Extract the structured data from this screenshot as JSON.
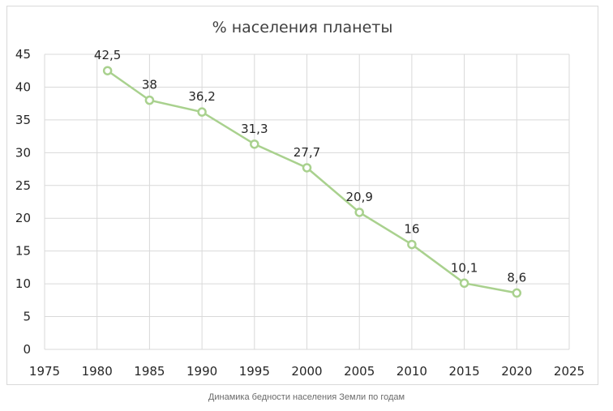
{
  "chart_data": {
    "type": "line",
    "title": "% населения планеты",
    "x": [
      1981,
      1985,
      1990,
      1995,
      2000,
      2005,
      2010,
      2015,
      2020
    ],
    "series": [
      {
        "values": [
          42.5,
          38,
          36.2,
          31.3,
          27.7,
          20.9,
          16,
          10.1,
          8.6
        ],
        "data_labels": [
          "42,5",
          "38",
          "36,2",
          "31,3",
          "27,7",
          "20,9",
          "16",
          "10,1",
          "8,6"
        ],
        "color": "#a9d18e"
      }
    ],
    "xlim": [
      1975,
      2025
    ],
    "ylim": [
      0,
      45
    ],
    "x_ticks": [
      "1975",
      "1980",
      "1985",
      "1990",
      "1995",
      "2000",
      "2005",
      "2010",
      "2015",
      "2020",
      "2025"
    ],
    "y_ticks": [
      "0",
      "5",
      "10",
      "15",
      "20",
      "25",
      "30",
      "35",
      "40",
      "45"
    ],
    "grid": true,
    "legend": "none"
  },
  "caption": "Динамика бедности населения Земли по годам",
  "colors": {
    "line": "#a9d18e",
    "marker_fill": "#ffffff",
    "grid": "#d9d9d9"
  }
}
